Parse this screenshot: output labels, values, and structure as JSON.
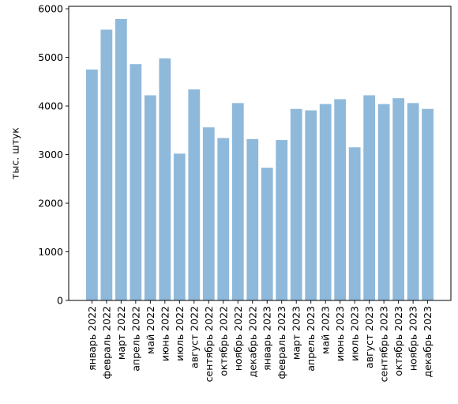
{
  "colors": {
    "bar": "#8fb9da",
    "axis": "#000000",
    "background": "#ffffff"
  },
  "chart_data": {
    "type": "bar",
    "title": "",
    "xlabel": "",
    "ylabel": "тыс. штук",
    "ylim": [
      0,
      6050
    ],
    "yticks": [
      0,
      1000,
      2000,
      3000,
      4000,
      5000,
      6000
    ],
    "grid": false,
    "legend": "none",
    "categories": [
      "январь 2022",
      "февраль 2022",
      "март 2022",
      "апрель 2022",
      "май 2022",
      "июнь 2022",
      "июль 2022",
      "август 2022",
      "сентябрь 2022",
      "октябрь 2022",
      "ноябрь 2022",
      "декабрь 2022",
      "январь 2023",
      "февраль 2023",
      "март 2023",
      "апрель 2023",
      "май 2023",
      "июнь 2023",
      "июль 2023",
      "август 2023",
      "сентябрь 2023",
      "октябрь 2023",
      "ноябрь 2023",
      "декабрь 2023"
    ],
    "values": [
      4750,
      5570,
      5790,
      4860,
      4220,
      4980,
      3020,
      4340,
      3560,
      3340,
      4060,
      3320,
      2730,
      3300,
      3940,
      3910,
      4040,
      4140,
      3150,
      4220,
      4040,
      4160,
      4060,
      3940
    ]
  }
}
